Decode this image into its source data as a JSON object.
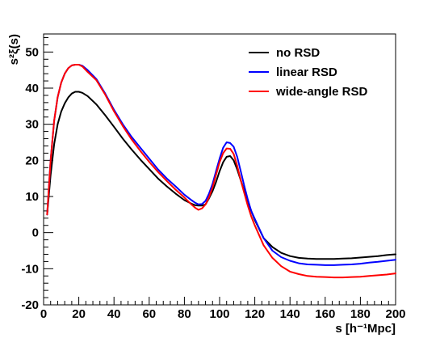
{
  "chart_data": {
    "type": "line",
    "xlabel": "s [h⁻¹Mpc]",
    "ylabel": "s²ξ(s)",
    "xlim": [
      0,
      200
    ],
    "ylim": [
      -20,
      55
    ],
    "x_ticks": [
      0,
      20,
      40,
      60,
      80,
      100,
      120,
      140,
      160,
      180,
      200
    ],
    "y_ticks": [
      -20,
      -10,
      0,
      10,
      20,
      30,
      40,
      50
    ],
    "grid": false,
    "legend_position": "top-right",
    "series": [
      {
        "name": "no RSD",
        "color": "#000000",
        "x": [
          2,
          4,
          6,
          8,
          10,
          12,
          14,
          16,
          18,
          20,
          22,
          25,
          30,
          35,
          40,
          45,
          50,
          55,
          60,
          65,
          70,
          75,
          80,
          84,
          86,
          88,
          90,
          92,
          94,
          96,
          98,
          100,
          102,
          104,
          106,
          108,
          110,
          112,
          114,
          116,
          118,
          120,
          125,
          130,
          135,
          140,
          145,
          150,
          155,
          160,
          165,
          170,
          175,
          180,
          185,
          190,
          195,
          200
        ],
        "y": [
          5,
          16,
          24.5,
          30,
          33.5,
          35.8,
          37.4,
          38.5,
          39,
          39,
          38.7,
          37.8,
          35.5,
          32.5,
          29.3,
          26,
          23,
          20.2,
          17.6,
          15,
          12.8,
          10.8,
          9,
          8,
          7.6,
          7.5,
          7.5,
          7.8,
          9.5,
          11.5,
          14,
          17,
          19.5,
          21,
          21.2,
          20,
          17.5,
          14.5,
          11.5,
          8.5,
          6,
          3.5,
          -1.5,
          -4,
          -5.6,
          -6.5,
          -7,
          -7.2,
          -7.3,
          -7.3,
          -7.3,
          -7.2,
          -7.1,
          -6.9,
          -6.7,
          -6.5,
          -6.2,
          -6
        ]
      },
      {
        "name": "linear RSD",
        "color": "#0000ff",
        "x": [
          2,
          4,
          6,
          8,
          10,
          12,
          14,
          16,
          18,
          20,
          22,
          25,
          30,
          35,
          40,
          45,
          50,
          55,
          60,
          65,
          70,
          75,
          80,
          84,
          86,
          88,
          90,
          92,
          94,
          96,
          98,
          100,
          102,
          104,
          106,
          108,
          110,
          112,
          114,
          116,
          118,
          120,
          125,
          130,
          135,
          140,
          145,
          150,
          155,
          160,
          165,
          170,
          175,
          180,
          185,
          190,
          195,
          200
        ],
        "y": [
          5,
          20,
          31,
          37.5,
          41.5,
          44,
          45.5,
          46.3,
          46.5,
          46.5,
          46.2,
          45,
          42.5,
          38.5,
          34,
          30,
          26.5,
          23.5,
          20.5,
          17.5,
          15,
          12.8,
          10.5,
          9,
          8.3,
          7.8,
          7.9,
          8.8,
          10.8,
          13.5,
          17,
          20.5,
          23.5,
          25,
          24.8,
          23.8,
          21,
          17,
          13,
          9.2,
          6,
          3.8,
          -1.5,
          -5,
          -6.8,
          -7.8,
          -8.5,
          -8.8,
          -8.9,
          -9,
          -9,
          -8.9,
          -8.8,
          -8.6,
          -8.3,
          -8.1,
          -7.8,
          -7.5
        ]
      },
      {
        "name": "wide-angle RSD",
        "color": "#ff0000",
        "x": [
          2,
          4,
          6,
          8,
          10,
          12,
          14,
          16,
          18,
          20,
          22,
          25,
          30,
          35,
          40,
          45,
          50,
          55,
          60,
          65,
          70,
          75,
          80,
          84,
          86,
          88,
          90,
          92,
          94,
          96,
          98,
          100,
          102,
          104,
          106,
          108,
          110,
          112,
          114,
          116,
          118,
          120,
          125,
          130,
          135,
          140,
          145,
          150,
          155,
          160,
          165,
          170,
          175,
          180,
          185,
          190,
          195,
          200
        ],
        "y": [
          5,
          20,
          31,
          37.5,
          41.5,
          44,
          45.5,
          46.3,
          46.5,
          46.5,
          46,
          44.5,
          42.2,
          38.2,
          33.6,
          29.5,
          25.8,
          22.6,
          19.6,
          16.8,
          14.3,
          11.9,
          9.7,
          7.8,
          6.9,
          6.3,
          6.7,
          7.8,
          9.8,
          12.5,
          16,
          19.5,
          22,
          23.3,
          23.2,
          21.8,
          18.5,
          14.5,
          11,
          7.5,
          4.5,
          2,
          -3.5,
          -7,
          -9.3,
          -10.8,
          -11.5,
          -12,
          -12.2,
          -12.3,
          -12.4,
          -12.4,
          -12.3,
          -12.2,
          -12,
          -11.8,
          -11.6,
          -11.3
        ]
      }
    ]
  }
}
